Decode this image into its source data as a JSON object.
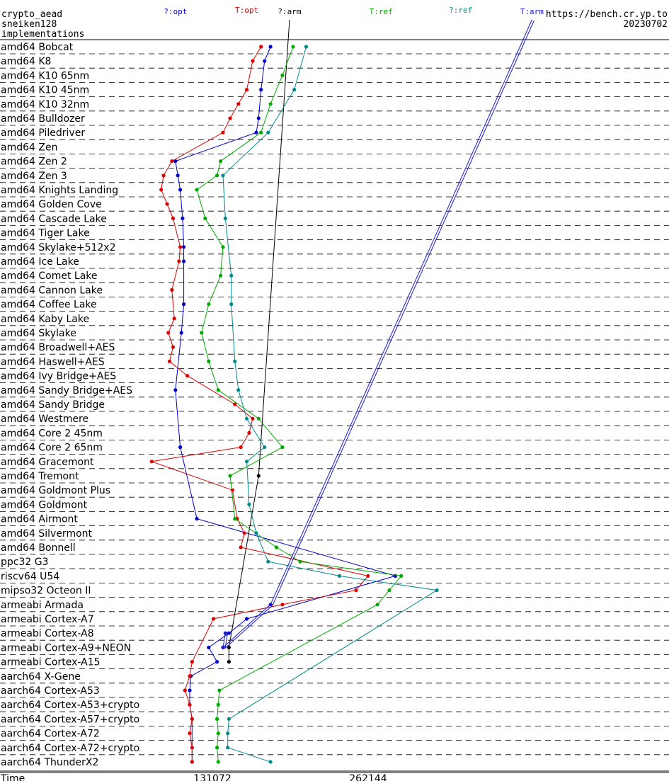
{
  "header": {
    "line1": "crypto_aead",
    "line2": "sneiken128",
    "line3": "implementations",
    "url": "https://bench.cr.yp.to",
    "date": "20230702"
  },
  "chart_data": {
    "type": "line",
    "orientation": "horizontal",
    "xlabel": "Time",
    "x_ticks": [
      131072,
      262144
    ],
    "x_tick_labels": [
      "131072",
      "262144"
    ],
    "grid": "dashed row separators",
    "categories": [
      "amd64 Bobcat",
      "amd64 K8",
      "amd64 K10 65nm",
      "amd64 K10 45nm",
      "amd64 K10 32nm",
      "amd64 Bulldozer",
      "amd64 Piledriver",
      "amd64 Zen",
      "amd64 Zen 2",
      "amd64 Zen 3",
      "amd64 Knights Landing",
      "amd64 Golden Cove",
      "amd64 Cascade Lake",
      "amd64 Tiger Lake",
      "amd64 Skylake+512x2",
      "amd64 Ice Lake",
      "amd64 Comet Lake",
      "amd64 Cannon Lake",
      "amd64 Coffee Lake",
      "amd64 Kaby Lake",
      "amd64 Skylake",
      "amd64 Broadwell+AES",
      "amd64 Haswell+AES",
      "amd64 Ivy Bridge+AES",
      "amd64 Sandy Bridge+AES",
      "amd64 Sandy Bridge",
      "amd64 Westmere",
      "amd64 Core 2 45nm",
      "amd64 Core 2 65nm",
      "amd64 Gracemont",
      "amd64 Tremont",
      "amd64 Goldmont Plus",
      "amd64 Goldmont",
      "amd64 Airmont",
      "amd64 Silvermont",
      "amd64 Bonnell",
      "ppc32 G3",
      "riscv64 U54",
      "mipso32 Octeon II",
      "armeabi Armada",
      "armeabi Cortex-A7",
      "armeabi Cortex-A8",
      "armeabi Cortex-A9+NEON",
      "armeabi Cortex-A15",
      "aarch64 X-Gene",
      "aarch64 Cortex-A53",
      "aarch64 Cortex-A53+crypto",
      "aarch64 Cortex-A57+crypto",
      "aarch64 Cortex-A72",
      "aarch64 Cortex-A72+crypto",
      "aarch64 ThunderX2"
    ],
    "series": [
      {
        "name": "?:opt",
        "color": "#0000cc",
        "points": [
          [
            180000,
            0
          ],
          [
            175000,
            1
          ],
          [
            172000,
            3
          ],
          [
            170000,
            5
          ],
          [
            168000,
            6
          ],
          [
            100000,
            8
          ],
          [
            102000,
            9
          ],
          [
            104000,
            10
          ],
          [
            106000,
            12
          ],
          [
            107000,
            14
          ],
          [
            107000,
            15
          ],
          [
            107000,
            18
          ],
          [
            105000,
            20
          ],
          [
            100000,
            24
          ],
          [
            104000,
            28
          ],
          [
            118000,
            33
          ],
          [
            285000,
            37
          ],
          [
            160000,
            40
          ],
          [
            145000,
            41
          ],
          [
            128000,
            42
          ],
          [
            135000,
            43
          ],
          [
            113000,
            44
          ],
          [
            112000,
            45
          ],
          [
            112000,
            46
          ],
          [
            114000,
            47
          ],
          [
            114000,
            50
          ]
        ]
      },
      {
        "name": "T:opt",
        "color": "#dd0000",
        "points": [
          [
            172000,
            0
          ],
          [
            165000,
            1
          ],
          [
            160000,
            3
          ],
          [
            153000,
            4
          ],
          [
            146000,
            5
          ],
          [
            140000,
            6
          ],
          [
            97000,
            8
          ],
          [
            90000,
            9
          ],
          [
            88000,
            10
          ],
          [
            93000,
            11
          ],
          [
            98000,
            12
          ],
          [
            104000,
            14
          ],
          [
            103000,
            15
          ],
          [
            97000,
            17
          ],
          [
            99000,
            19
          ],
          [
            94000,
            20
          ],
          [
            98000,
            21
          ],
          [
            95000,
            22
          ],
          [
            110000,
            23
          ],
          [
            150000,
            25
          ],
          [
            165000,
            26
          ],
          [
            162000,
            27
          ],
          [
            155000,
            28
          ],
          [
            80000,
            29
          ],
          [
            148000,
            31
          ],
          [
            152000,
            33
          ],
          [
            158000,
            34
          ],
          [
            155000,
            35
          ],
          [
            262000,
            37
          ],
          [
            252000,
            38
          ],
          [
            190000,
            39
          ],
          [
            132000,
            40
          ],
          [
            114000,
            43
          ],
          [
            112000,
            44
          ],
          [
            108000,
            45
          ],
          [
            112000,
            46
          ],
          [
            114000,
            47
          ],
          [
            112000,
            48
          ],
          [
            114000,
            49
          ],
          [
            114000,
            50
          ]
        ]
      },
      {
        "name": "?:arm",
        "color": "#000000",
        "points": [
          [
            196000,
            -1
          ],
          [
            170000,
            30
          ],
          [
            145000,
            42
          ],
          [
            145000,
            43
          ]
        ]
      },
      {
        "name": "T:ref",
        "color": "#00aa00",
        "points": [
          [
            199000,
            0
          ],
          [
            190000,
            2
          ],
          [
            180000,
            4
          ],
          [
            172000,
            6
          ],
          [
            138000,
            8
          ],
          [
            135000,
            9
          ],
          [
            118000,
            10
          ],
          [
            125000,
            12
          ],
          [
            140000,
            14
          ],
          [
            138000,
            16
          ],
          [
            128000,
            18
          ],
          [
            122000,
            20
          ],
          [
            128000,
            22
          ],
          [
            136000,
            24
          ],
          [
            170000,
            26
          ],
          [
            190000,
            28
          ],
          [
            146000,
            30
          ],
          [
            150000,
            33
          ],
          [
            185000,
            35
          ],
          [
            205000,
            36
          ],
          [
            290000,
            37
          ],
          [
            280000,
            38
          ],
          [
            270000,
            39
          ],
          [
            137000,
            45
          ],
          [
            136000,
            46
          ],
          [
            135000,
            47
          ],
          [
            136000,
            48
          ],
          [
            135000,
            49
          ],
          [
            136000,
            50
          ]
        ]
      },
      {
        "name": "?:ref",
        "color": "#008b8b",
        "points": [
          [
            210000,
            0
          ],
          [
            200000,
            3
          ],
          [
            178000,
            6
          ],
          [
            140000,
            9
          ],
          [
            142000,
            12
          ],
          [
            147000,
            16
          ],
          [
            147000,
            18
          ],
          [
            150000,
            22
          ],
          [
            153000,
            24
          ],
          [
            160000,
            26
          ],
          [
            175000,
            28
          ],
          [
            160000,
            29
          ],
          [
            162000,
            32
          ],
          [
            168000,
            34
          ],
          [
            178000,
            36
          ],
          [
            238000,
            37
          ],
          [
            320000,
            38
          ],
          [
            145000,
            47
          ],
          [
            144000,
            48
          ],
          [
            144000,
            49
          ],
          [
            180000,
            50
          ]
        ]
      },
      {
        "name": "T:arm",
        "color": "#1a1ad6",
        "points": [
          [
            400000,
            -1
          ],
          [
            180000,
            39
          ],
          [
            140000,
            42
          ],
          [
            142000,
            41
          ]
        ]
      }
    ],
    "series_label_x": [
      100000,
      160000,
      196000,
      273000,
      340000,
      400000
    ]
  }
}
